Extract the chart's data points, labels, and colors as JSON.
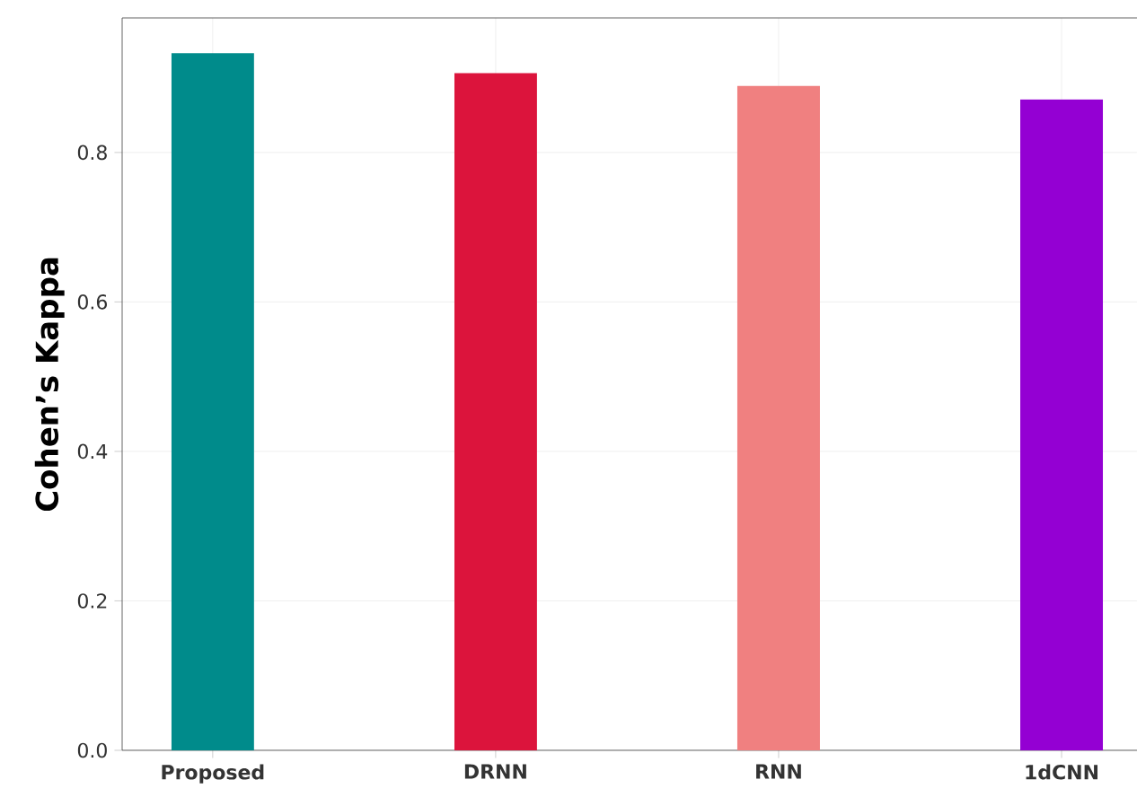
{
  "chart_data": {
    "type": "bar",
    "ylabel": "Cohen’s Kappa",
    "categories": [
      "Proposed",
      "DRNN",
      "RNN",
      "1dCNN"
    ],
    "values": [
      0.933,
      0.906,
      0.889,
      0.871
    ],
    "colors": [
      "#008b8b",
      "#dc143c",
      "#f08080",
      "#9400d3"
    ],
    "ylim": [
      0,
      0.98
    ],
    "yticks": [
      {
        "value": 0,
        "label": "0.0"
      },
      0.2,
      0.4,
      0.6,
      0.8
    ],
    "grid": true
  }
}
